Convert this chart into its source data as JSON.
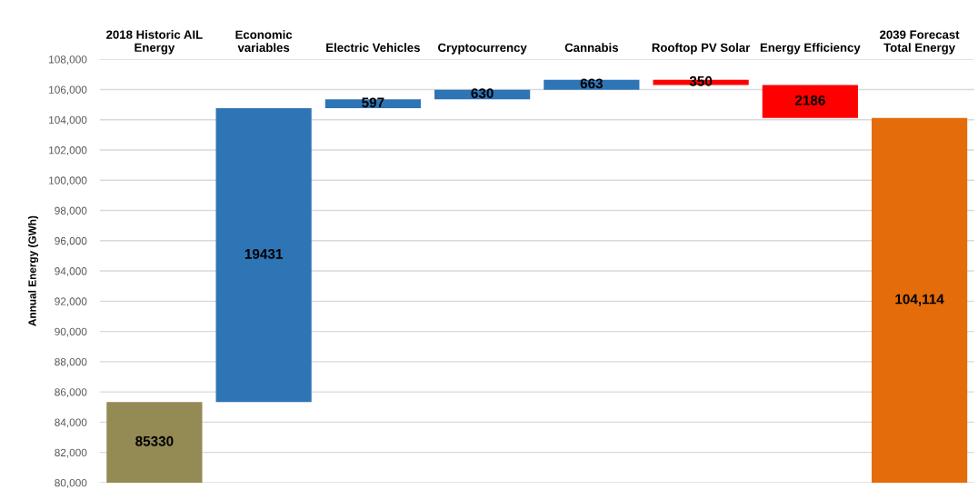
{
  "chart_data": {
    "type": "bar",
    "ylabel": "Annual Energy (GWh)",
    "categories": [
      "2018 Historic AIL\nEnergy",
      "Economic\nvariables",
      "Electric Vehicles",
      "Cryptocurrency",
      "Cannabis",
      "Rooftop PV Solar",
      "Energy Efficiency",
      "2039 Forecast\nTotal Energy"
    ],
    "values": [
      85330,
      19431,
      597,
      630,
      663,
      -350,
      -2186,
      104114
    ],
    "base": [
      null,
      85330,
      104761,
      105358,
      105988,
      106651,
      106301,
      null
    ],
    "colors": [
      "#948a54",
      "#2e75b6",
      "#2e75b6",
      "#2e75b6",
      "#2e75b6",
      "#ff0000",
      "#ff0000",
      "#e46c0a"
    ],
    "value_labels": [
      "85330",
      "19431",
      "597",
      "630",
      "663",
      "350",
      "2186",
      "104,114"
    ],
    "ylim": [
      80000,
      108000
    ],
    "yticks": [
      {
        "value": 80000,
        "label": "80,000"
      },
      {
        "value": 82000,
        "label": "82,000"
      },
      {
        "value": 84000,
        "label": "84,000"
      },
      {
        "value": 86000,
        "label": "86,000"
      },
      {
        "value": 88000,
        "label": "88,000"
      },
      {
        "value": 90000,
        "label": "90,000"
      },
      {
        "value": 92000,
        "label": "92,000"
      },
      {
        "value": 94000,
        "label": "94,000"
      },
      {
        "value": 96000,
        "label": "96,000"
      },
      {
        "value": 98000,
        "label": "98,000"
      },
      {
        "value": 100000,
        "label": "100,000"
      },
      {
        "value": 102000,
        "label": "102,000"
      },
      {
        "value": 104000,
        "label": "104,000"
      },
      {
        "value": 106000,
        "label": "106,000"
      },
      {
        "value": 108000,
        "label": "108,000"
      }
    ],
    "grid": "y",
    "legend": false
  }
}
